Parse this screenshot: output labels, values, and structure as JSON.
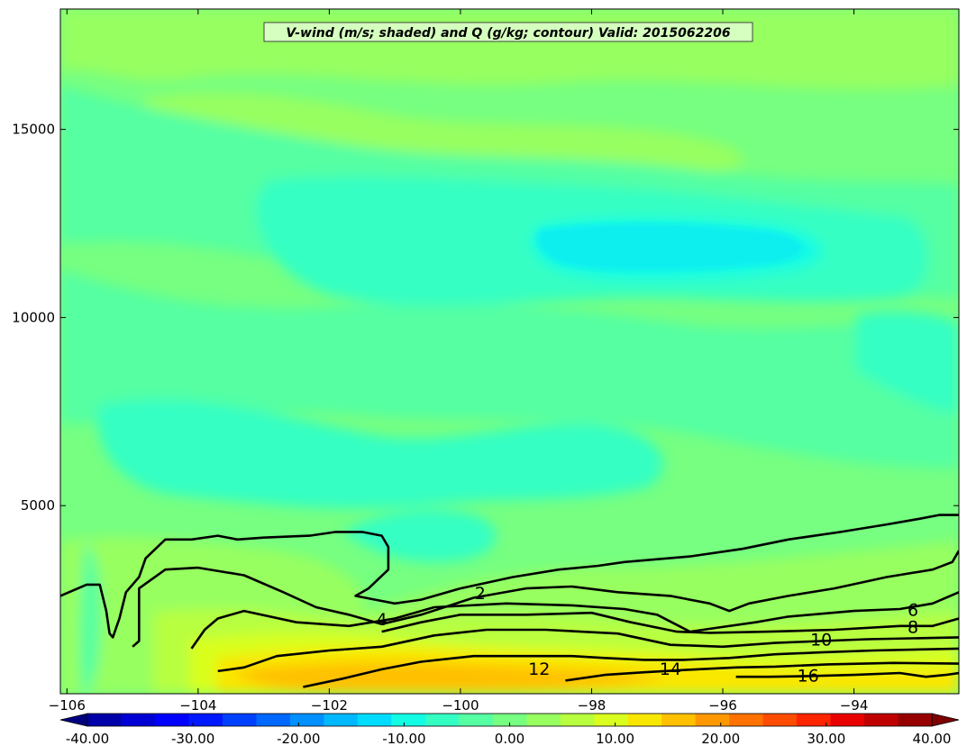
{
  "chart_data": {
    "type": "contour",
    "title": "V-wind (m/s; shaded) and Q (g/kg; contour) Valid: 2015062206",
    "xlabel": "",
    "ylabel": "",
    "xlim": [
      -106.1,
      -92.4
    ],
    "ylim": [
      0,
      18200
    ],
    "x_ticks": [
      -106,
      -104,
      -102,
      -100,
      -98,
      -96,
      -94
    ],
    "x_tick_labels": [
      "−106",
      "−104",
      "−102",
      "−100",
      "−98",
      "−96",
      "−94"
    ],
    "y_ticks": [
      5000,
      10000,
      15000
    ],
    "y_tick_labels": [
      "5000",
      "10000",
      "15000"
    ],
    "grid": false,
    "shaded_field": {
      "name": "V-wind",
      "units": "m/s",
      "levels": [
        -40,
        40
      ],
      "colorbar_ticks": [
        -40,
        -30,
        -20,
        -10,
        0,
        10,
        20,
        30,
        40
      ],
      "colorbar_tick_labels": [
        "-40.00",
        "-30.00",
        "-20.00",
        "-10.00",
        "0.00",
        "10.00",
        "20.00",
        "30.00",
        "40.00"
      ],
      "colorbar_colors": [
        "#00007f",
        "#0000a8",
        "#0000d4",
        "#0000ff",
        "#0018ff",
        "#0040ff",
        "#0068ff",
        "#0090ff",
        "#00b8ff",
        "#00dcfe",
        "#13fce4",
        "#34ffc3",
        "#55ffa2",
        "#76ff81",
        "#97ff60",
        "#b8ff3f",
        "#d9ff1e",
        "#fae700",
        "#ffc000",
        "#ff9800",
        "#ff7200",
        "#ff4c00",
        "#ff2400",
        "#e80000",
        "#bf0000",
        "#970000",
        "#7f0000"
      ],
      "dominant_range": [
        -12,
        14
      ]
    },
    "contour_field": {
      "name": "Q",
      "units": "g/kg",
      "levels": [
        2,
        4,
        6,
        8,
        10,
        12,
        14,
        16
      ],
      "labels": [
        {
          "text": "2",
          "x": -99.7,
          "y": 2650
        },
        {
          "text": "4",
          "x": -101.2,
          "y": 1950
        },
        {
          "text": "6",
          "x": -93.1,
          "y": 2200
        },
        {
          "text": "8",
          "x": -93.1,
          "y": 1750
        },
        {
          "text": "10",
          "x": -94.5,
          "y": 1410
        },
        {
          "text": "12",
          "x": -98.8,
          "y": 630
        },
        {
          "text": "14",
          "x": -96.8,
          "y": 640
        },
        {
          "text": "16",
          "x": -94.7,
          "y": 450
        }
      ],
      "lines": [
        {
          "level": 2,
          "points": [
            [
              -106.1,
              2600
            ],
            [
              -105.7,
              2900
            ],
            [
              -105.5,
              2900
            ],
            [
              -105.4,
              2200
            ],
            [
              -105.35,
              1600
            ],
            [
              -105.3,
              1500
            ],
            [
              -105.2,
              2000
            ],
            [
              -105.1,
              2700
            ],
            [
              -104.9,
              3100
            ],
            [
              -104.8,
              3600
            ],
            [
              -104.5,
              4100
            ],
            [
              -104.1,
              4100
            ],
            [
              -103.7,
              4200
            ],
            [
              -103.4,
              4100
            ],
            [
              -103,
              4150
            ],
            [
              -102.3,
              4200
            ],
            [
              -101.9,
              4300
            ],
            [
              -101.5,
              4300
            ],
            [
              -101.2,
              4200
            ],
            [
              -101.1,
              3900
            ],
            [
              -101.1,
              3300
            ],
            [
              -101.4,
              2800
            ],
            [
              -101.6,
              2600
            ],
            [
              -101.3,
              2500
            ],
            [
              -101,
              2400
            ],
            [
              -100.6,
              2500
            ],
            [
              -100,
              2800
            ],
            [
              -99.2,
              3100
            ],
            [
              -98.5,
              3300
            ],
            [
              -97.9,
              3400
            ],
            [
              -97.5,
              3500
            ],
            [
              -96.5,
              3650
            ],
            [
              -95.7,
              3850
            ],
            [
              -95,
              4100
            ],
            [
              -94.2,
              4300
            ],
            [
              -93.5,
              4500
            ],
            [
              -93,
              4650
            ],
            [
              -92.7,
              4750
            ],
            [
              -92.4,
              4750
            ]
          ]
        },
        {
          "level": 4,
          "points": [
            [
              -105,
              1250
            ],
            [
              -104.9,
              1400
            ],
            [
              -104.9,
              2800
            ],
            [
              -104.5,
              3300
            ],
            [
              -104,
              3350
            ],
            [
              -103.3,
              3150
            ],
            [
              -102.7,
              2700
            ],
            [
              -102.2,
              2300
            ],
            [
              -101.7,
              2100
            ],
            [
              -101.2,
              1850
            ],
            [
              -100.6,
              2100
            ],
            [
              -99.8,
              2550
            ],
            [
              -99,
              2800
            ],
            [
              -98.3,
              2850
            ],
            [
              -97.6,
              2700
            ],
            [
              -96.8,
              2600
            ],
            [
              -96.2,
              2400
            ],
            [
              -95.9,
              2200
            ],
            [
              -95.6,
              2400
            ],
            [
              -95,
              2600
            ],
            [
              -94.3,
              2800
            ],
            [
              -93.5,
              3100
            ],
            [
              -92.8,
              3300
            ],
            [
              -92.5,
              3500
            ],
            [
              -92.4,
              3800
            ]
          ]
        },
        {
          "level": 6,
          "points": [
            [
              -104.1,
              1200
            ],
            [
              -103.9,
              1700
            ],
            [
              -103.7,
              2000
            ],
            [
              -103.3,
              2200
            ],
            [
              -102.5,
              1900
            ],
            [
              -101.7,
              1800
            ],
            [
              -101,
              2000
            ],
            [
              -100.4,
              2300
            ],
            [
              -99.3,
              2400
            ],
            [
              -98.3,
              2350
            ],
            [
              -97.5,
              2250
            ],
            [
              -97,
              2100
            ],
            [
              -96.5,
              1650
            ],
            [
              -96.1,
              1750
            ],
            [
              -95.5,
              1900
            ],
            [
              -95,
              2050
            ],
            [
              -94,
              2200
            ],
            [
              -93.3,
              2250
            ],
            [
              -92.8,
              2400
            ],
            [
              -92.4,
              2700
            ]
          ]
        },
        {
          "level": 8,
          "points": [
            [
              -101.2,
              1650
            ],
            [
              -100.6,
              1900
            ],
            [
              -100,
              2100
            ],
            [
              -99,
              2100
            ],
            [
              -98,
              2150
            ],
            [
              -97.4,
              1900
            ],
            [
              -96.7,
              1650
            ],
            [
              -96.2,
              1620
            ],
            [
              -95.3,
              1650
            ],
            [
              -94.3,
              1700
            ],
            [
              -93.3,
              1800
            ],
            [
              -92.8,
              1800
            ],
            [
              -92.4,
              2000
            ]
          ]
        },
        {
          "level": 10,
          "points": [
            [
              -103.7,
              600
            ],
            [
              -103.3,
              700
            ],
            [
              -102.8,
              1000
            ],
            [
              -102,
              1150
            ],
            [
              -101.2,
              1250
            ],
            [
              -100.4,
              1550
            ],
            [
              -99.6,
              1700
            ],
            [
              -98.7,
              1700
            ],
            [
              -97.6,
              1600
            ],
            [
              -96.8,
              1300
            ],
            [
              -96,
              1250
            ],
            [
              -95.2,
              1350
            ],
            [
              -94.5,
              1400
            ],
            [
              -93.8,
              1450
            ],
            [
              -92.4,
              1500
            ]
          ]
        },
        {
          "level": 12,
          "points": [
            [
              -102.4,
              180
            ],
            [
              -101.8,
              400
            ],
            [
              -101.2,
              650
            ],
            [
              -100.6,
              850
            ],
            [
              -99.8,
              1000
            ],
            [
              -99,
              1000
            ],
            [
              -98.3,
              1000
            ],
            [
              -97.8,
              950
            ],
            [
              -97.2,
              900
            ],
            [
              -96.6,
              900
            ],
            [
              -95.9,
              950
            ],
            [
              -95.2,
              1050
            ],
            [
              -94.5,
              1100
            ],
            [
              -93.7,
              1150
            ],
            [
              -92.4,
              1200
            ]
          ]
        },
        {
          "level": 14,
          "points": [
            [
              -98.4,
              350
            ],
            [
              -97.8,
              500
            ],
            [
              -97.2,
              570
            ],
            [
              -96.5,
              640
            ],
            [
              -95.8,
              700
            ],
            [
              -95.2,
              720
            ],
            [
              -94.4,
              780
            ],
            [
              -93.4,
              820
            ],
            [
              -92.4,
              800
            ]
          ]
        },
        {
          "level": 16,
          "points": [
            [
              -95.8,
              450
            ],
            [
              -95.3,
              450
            ],
            [
              -94.7,
              470
            ],
            [
              -94,
              500
            ],
            [
              -93.3,
              550
            ],
            [
              -92.9,
              450
            ],
            [
              -92.6,
              500
            ],
            [
              -92.4,
              550
            ]
          ]
        }
      ]
    }
  }
}
